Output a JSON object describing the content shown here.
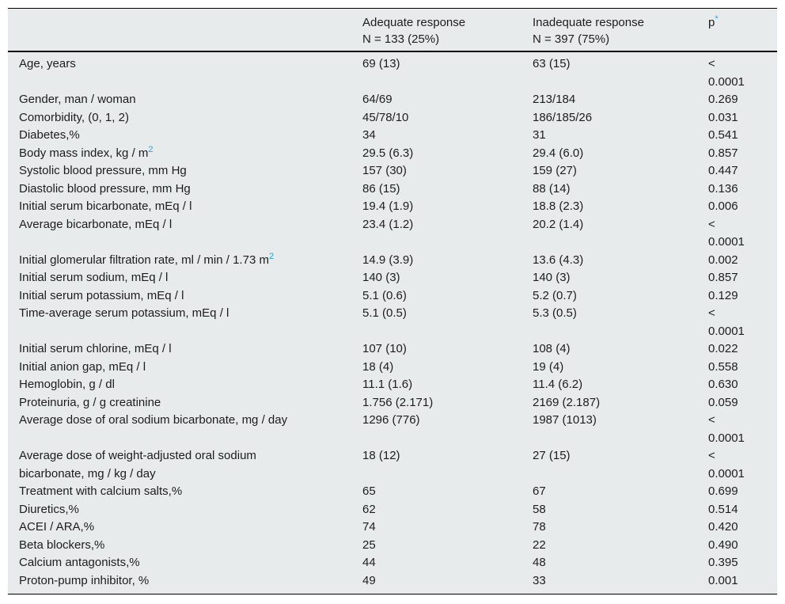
{
  "colors": {
    "accent_blue": "#2e9fd9",
    "table_background": "#e7ebec",
    "rule_black": "#000000",
    "text": "#1d1d1d"
  },
  "table": {
    "header": {
      "col1": {
        "label": ""
      },
      "col2": {
        "label": "Adequate response",
        "sublabel": "N = 133 (25%)"
      },
      "col3": {
        "label": "Inadequate response",
        "sublabel": "N = 397 (75%)"
      },
      "col4": {
        "label": "p",
        "sup": "*"
      }
    },
    "rows": [
      {
        "label": "Age, years",
        "sup": "",
        "adequate": "69 (13)",
        "inadequate": "63 (15)",
        "p": "< 0.0001"
      },
      {
        "label": "Gender, man / woman",
        "sup": "",
        "adequate": "64/69",
        "inadequate": "213/184",
        "p": "0.269"
      },
      {
        "label": "Comorbidity, (0, 1, 2)",
        "sup": "",
        "adequate": "45/78/10",
        "inadequate": "186/185/26",
        "p": "0.031"
      },
      {
        "label": "Diabetes,%",
        "sup": "",
        "adequate": "34",
        "inadequate": "31",
        "p": "0.541"
      },
      {
        "label": "Body mass index, kg / m",
        "sup": "2",
        "adequate": "29.5 (6.3)",
        "inadequate": "29.4 (6.0)",
        "p": "0.857"
      },
      {
        "label": "Systolic blood pressure, mm Hg",
        "sup": "",
        "adequate": "157 (30)",
        "inadequate": "159 (27)",
        "p": "0.447"
      },
      {
        "label": "Diastolic blood pressure, mm Hg",
        "sup": "",
        "adequate": "86 (15)",
        "inadequate": "88 (14)",
        "p": "0.136"
      },
      {
        "label": "Initial serum bicarbonate, mEq / l",
        "sup": "",
        "adequate": "19.4 (1.9)",
        "inadequate": "18.8 (2.3)",
        "p": "0.006"
      },
      {
        "label": "Average bicarbonate, mEq / l",
        "sup": "",
        "adequate": "23.4 (1.2)",
        "inadequate": "20.2 (1.4)",
        "p": "< 0.0001"
      },
      {
        "label": "Initial glomerular filtration rate, ml / min / 1.73 m",
        "sup": "2",
        "adequate": "14.9 (3.9)",
        "inadequate": "13.6 (4.3)",
        "p": "0.002"
      },
      {
        "label": "Initial serum sodium, mEq / l",
        "sup": "",
        "adequate": "140 (3)",
        "inadequate": "140 (3)",
        "p": "0.857"
      },
      {
        "label": "Initial serum potassium, mEq / l",
        "sup": "",
        "adequate": "5.1 (0.6)",
        "inadequate": "5.2 (0.7)",
        "p": "0.129"
      },
      {
        "label": "Time-average serum potassium, mEq / l",
        "sup": "",
        "adequate": "5.1 (0.5)",
        "inadequate": "5.3 (0.5)",
        "p": "< 0.0001"
      },
      {
        "label": "Initial serum chlorine, mEq / l",
        "sup": "",
        "adequate": "107 (10)",
        "inadequate": "108 (4)",
        "p": "0.022"
      },
      {
        "label": "Initial anion gap, mEq / l",
        "sup": "",
        "adequate": "18 (4)",
        "inadequate": "19 (4)",
        "p": "0.558"
      },
      {
        "label": "Hemoglobin, g / dl",
        "sup": "",
        "adequate": "11.1 (1.6)",
        "inadequate": "11.4 (6.2)",
        "p": "0.630"
      },
      {
        "label": "Proteinuria, g / g creatinine",
        "sup": "",
        "adequate": "1.756 (2.171)",
        "inadequate": "2169 (2.187)",
        "p": "0.059"
      },
      {
        "label": "Average dose of oral sodium bicarbonate, mg / day",
        "sup": "",
        "adequate": "1296 (776)",
        "inadequate": "1987 (1013)",
        "p": "< 0.0001"
      },
      {
        "label": "Average dose of weight-adjusted oral sodium bicarbonate, mg / kg / day",
        "sup": "",
        "adequate": "18 (12)",
        "inadequate": "27 (15)",
        "p": "< 0.0001"
      },
      {
        "label": "Treatment with calcium salts,%",
        "sup": "",
        "adequate": "65",
        "inadequate": "67",
        "p": "0.699"
      },
      {
        "label": "Diuretics,%",
        "sup": "",
        "adequate": "62",
        "inadequate": "58",
        "p": "0.514"
      },
      {
        "label": "ACEI / ARA,%",
        "sup": "",
        "adequate": "74",
        "inadequate": "78",
        "p": "0.420"
      },
      {
        "label": "Beta blockers,%",
        "sup": "",
        "adequate": "25",
        "inadequate": "22",
        "p": "0.490"
      },
      {
        "label": "Calcium antagonists,%",
        "sup": "",
        "adequate": "44",
        "inadequate": "48",
        "p": "0.395"
      },
      {
        "label": "Proton-pump inhibitor, %",
        "sup": "",
        "adequate": "49",
        "inadequate": "33",
        "p": "0.001"
      }
    ]
  }
}
